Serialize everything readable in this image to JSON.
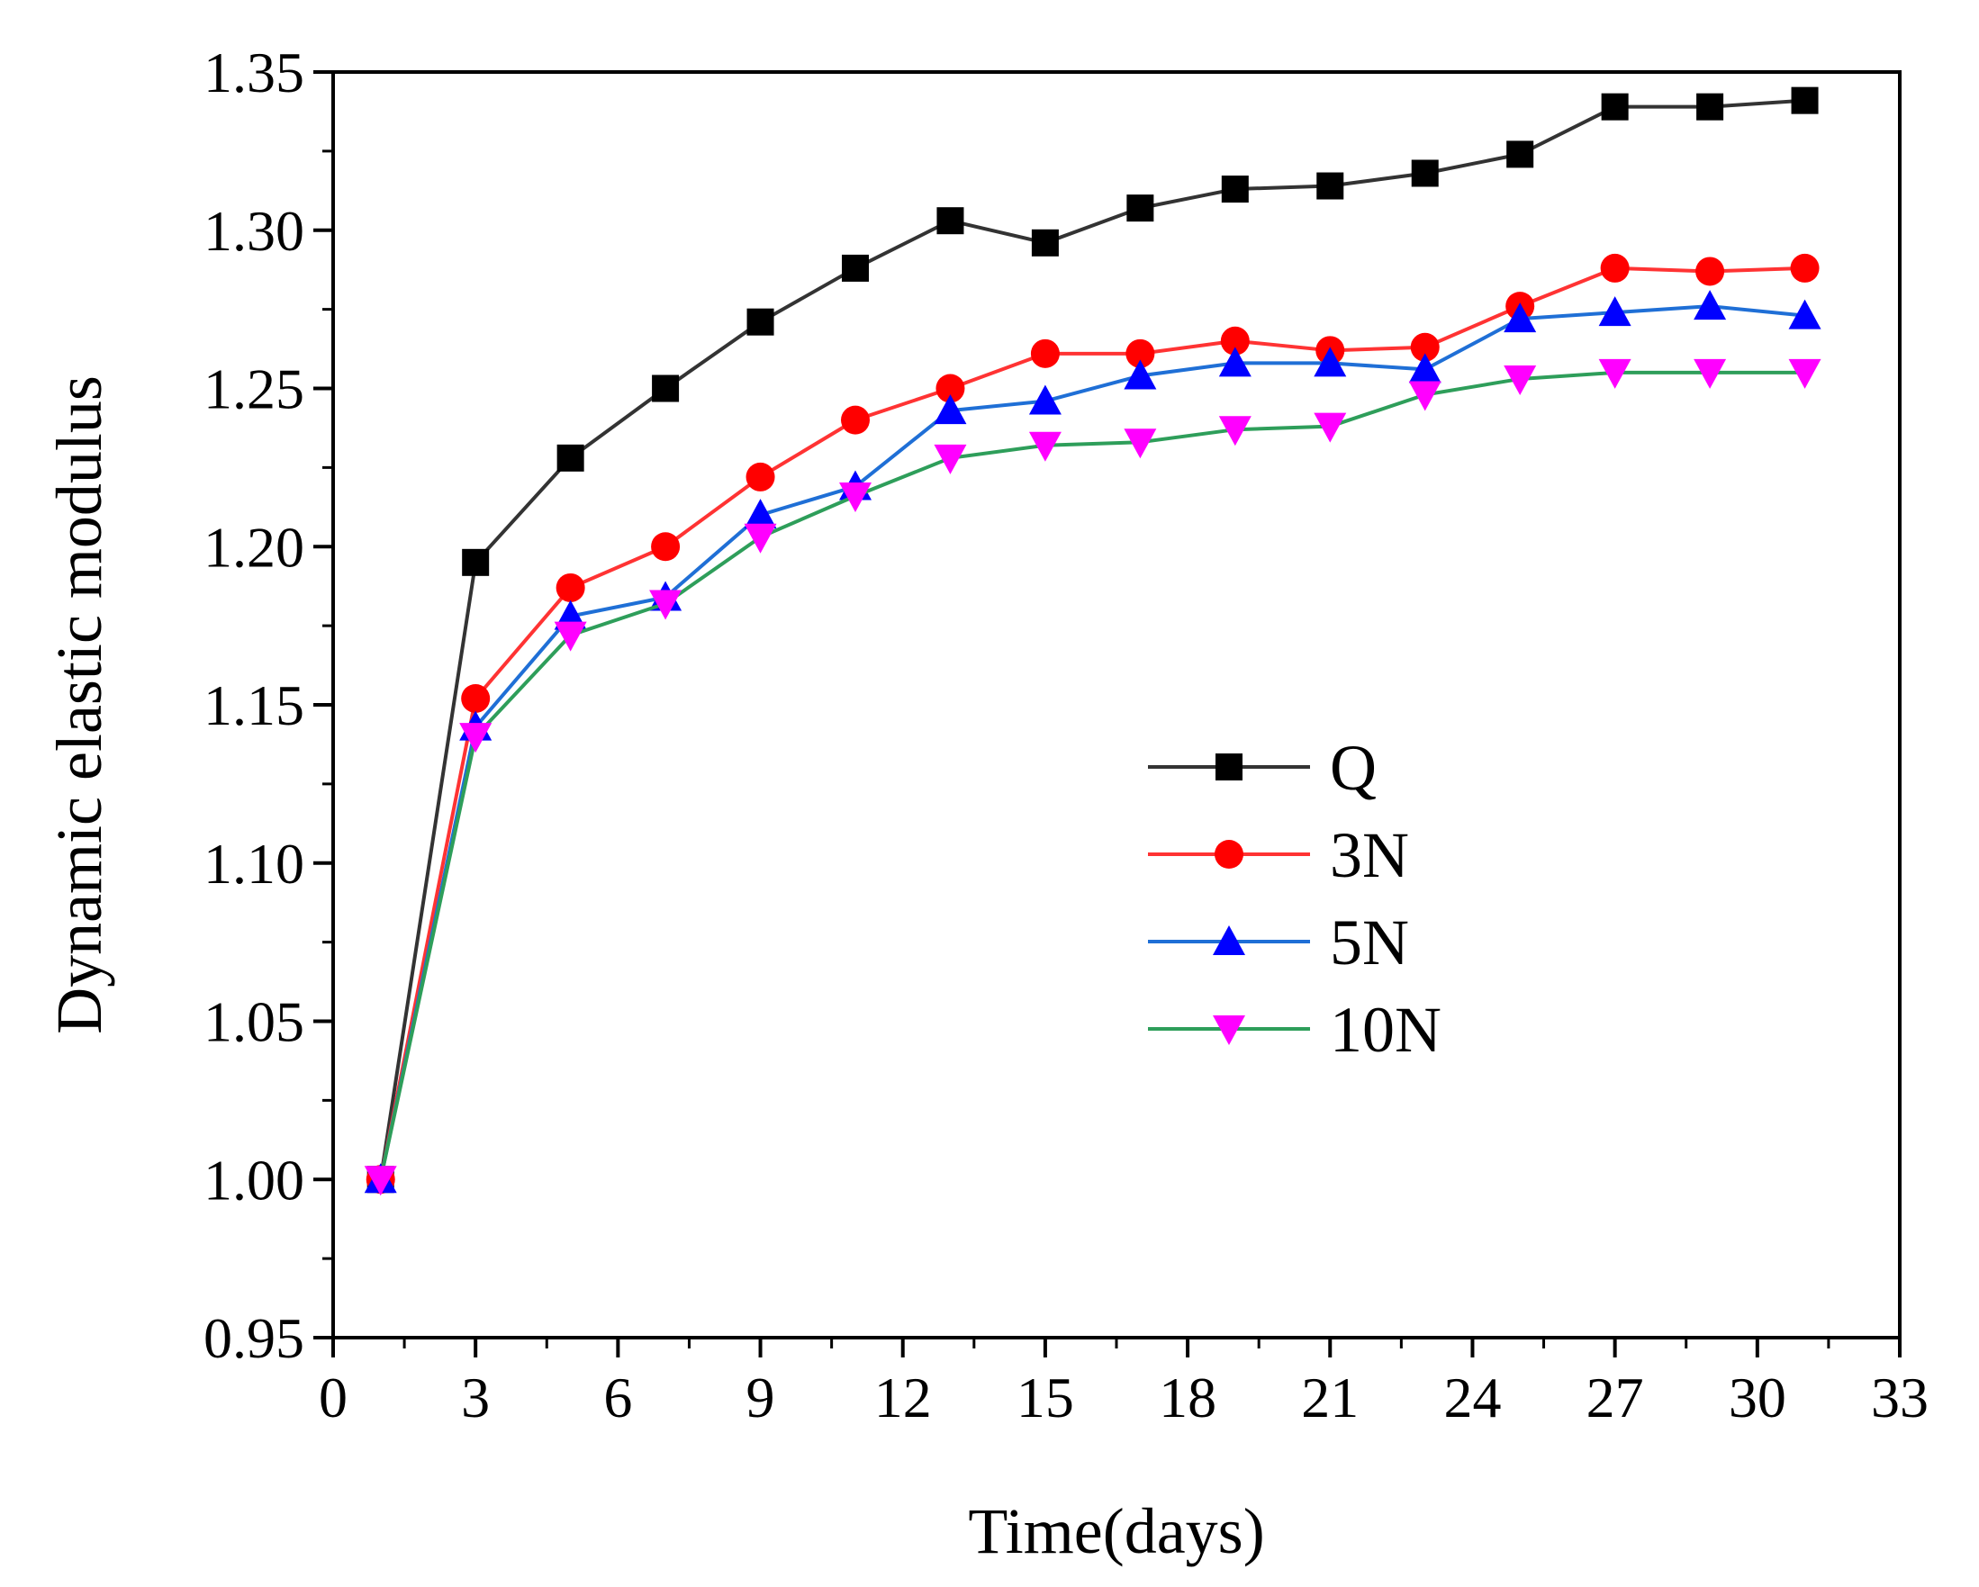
{
  "chart_data": {
    "type": "line",
    "xlabel": "Time(days)",
    "ylabel": "Dynamic elastic modulus",
    "xlim": [
      0,
      33
    ],
    "ylim": [
      0.95,
      1.35
    ],
    "xticks": [
      0,
      3,
      6,
      9,
      12,
      15,
      18,
      21,
      24,
      27,
      30,
      33
    ],
    "yticks": [
      "0.95",
      "1.00",
      "1.05",
      "1.10",
      "1.15",
      "1.20",
      "1.25",
      "1.30",
      "1.35"
    ],
    "grid": false,
    "legend_position": "center-right",
    "x": [
      1,
      3,
      5,
      7,
      9,
      11,
      13,
      15,
      17,
      19,
      21,
      23,
      25,
      27,
      29,
      31
    ],
    "series": [
      {
        "name": "Q",
        "color": "#000000",
        "line_color": "#333333",
        "marker": "square",
        "values": [
          1.0,
          1.195,
          1.228,
          1.25,
          1.271,
          1.288,
          1.303,
          1.296,
          1.307,
          1.313,
          1.314,
          1.318,
          1.324,
          1.339,
          1.339,
          1.341
        ]
      },
      {
        "name": "3N",
        "color": "#ff0000",
        "line_color": "#ff3333",
        "marker": "circle",
        "values": [
          1.0,
          1.152,
          1.187,
          1.2,
          1.222,
          1.24,
          1.25,
          1.261,
          1.261,
          1.265,
          1.262,
          1.263,
          1.276,
          1.288,
          1.287,
          1.288
        ]
      },
      {
        "name": "5N",
        "color": "#0000ff",
        "line_color": "#1f6fd6",
        "marker": "triangle-up",
        "values": [
          1.0,
          1.143,
          1.178,
          1.184,
          1.21,
          1.219,
          1.243,
          1.246,
          1.254,
          1.258,
          1.258,
          1.256,
          1.272,
          1.274,
          1.276,
          1.273
        ]
      },
      {
        "name": "10N",
        "color": "#ff00ff",
        "line_color": "#2e9e5a",
        "marker": "triangle-down",
        "values": [
          1.0,
          1.14,
          1.172,
          1.182,
          1.203,
          1.216,
          1.228,
          1.232,
          1.233,
          1.237,
          1.238,
          1.248,
          1.253,
          1.255,
          1.255,
          1.255
        ]
      }
    ]
  }
}
